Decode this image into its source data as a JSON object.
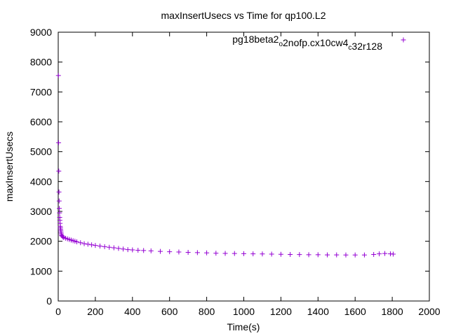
{
  "chart_data": {
    "type": "scatter",
    "title": "maxInsertUsecs vs Time for qp100.L2",
    "xlabel": "Time(s)",
    "ylabel": "maxInsertUsecs",
    "xlim": [
      0,
      2000
    ],
    "ylim": [
      0,
      9000
    ],
    "x_ticks": [
      0,
      200,
      400,
      600,
      800,
      1000,
      1200,
      1400,
      1600,
      1800,
      2000
    ],
    "y_ticks": [
      0,
      1000,
      2000,
      3000,
      4000,
      5000,
      6000,
      7000,
      8000,
      9000
    ],
    "grid": false,
    "legend_position": "top-right",
    "marker": "+",
    "color": "#9400d3",
    "series": [
      {
        "name_parts": [
          {
            "text": "pg18beta2",
            "sub": false
          },
          {
            "text": "o",
            "sub": true
          },
          {
            "text": "2nofp.cx10cw4",
            "sub": false
          },
          {
            "text": "c",
            "sub": true
          },
          {
            "text": "32r128",
            "sub": false
          }
        ],
        "points": [
          [
            1,
            7550
          ],
          [
            2,
            5300
          ],
          [
            3,
            4350
          ],
          [
            4,
            3650
          ],
          [
            5,
            3350
          ],
          [
            6,
            3100
          ],
          [
            7,
            2950
          ],
          [
            8,
            2800
          ],
          [
            9,
            2700
          ],
          [
            10,
            2600
          ],
          [
            11,
            2500
          ],
          [
            12,
            2450
          ],
          [
            13,
            2400
          ],
          [
            14,
            2350
          ],
          [
            15,
            2300
          ],
          [
            16,
            2250
          ],
          [
            18,
            2200
          ],
          [
            20,
            2180
          ],
          [
            25,
            2150
          ],
          [
            30,
            2120
          ],
          [
            40,
            2100
          ],
          [
            50,
            2080
          ],
          [
            60,
            2060
          ],
          [
            70,
            2040
          ],
          [
            80,
            2020
          ],
          [
            90,
            2000
          ],
          [
            100,
            1980
          ],
          [
            120,
            1950
          ],
          [
            140,
            1920
          ],
          [
            160,
            1900
          ],
          [
            180,
            1880
          ],
          [
            200,
            1860
          ],
          [
            225,
            1840
          ],
          [
            250,
            1820
          ],
          [
            275,
            1800
          ],
          [
            300,
            1780
          ],
          [
            325,
            1760
          ],
          [
            350,
            1740
          ],
          [
            375,
            1720
          ],
          [
            400,
            1710
          ],
          [
            430,
            1700
          ],
          [
            460,
            1690
          ],
          [
            500,
            1680
          ],
          [
            550,
            1660
          ],
          [
            600,
            1650
          ],
          [
            650,
            1640
          ],
          [
            700,
            1630
          ],
          [
            750,
            1620
          ],
          [
            800,
            1610
          ],
          [
            850,
            1600
          ],
          [
            900,
            1595
          ],
          [
            950,
            1590
          ],
          [
            1000,
            1585
          ],
          [
            1050,
            1580
          ],
          [
            1100,
            1575
          ],
          [
            1150,
            1570
          ],
          [
            1200,
            1565
          ],
          [
            1250,
            1560
          ],
          [
            1300,
            1555
          ],
          [
            1350,
            1550
          ],
          [
            1400,
            1550
          ],
          [
            1450,
            1545
          ],
          [
            1500,
            1545
          ],
          [
            1550,
            1540
          ],
          [
            1600,
            1540
          ],
          [
            1650,
            1540
          ],
          [
            1700,
            1560
          ],
          [
            1730,
            1580
          ],
          [
            1760,
            1590
          ],
          [
            1790,
            1580
          ],
          [
            1805,
            1570
          ]
        ]
      }
    ]
  }
}
